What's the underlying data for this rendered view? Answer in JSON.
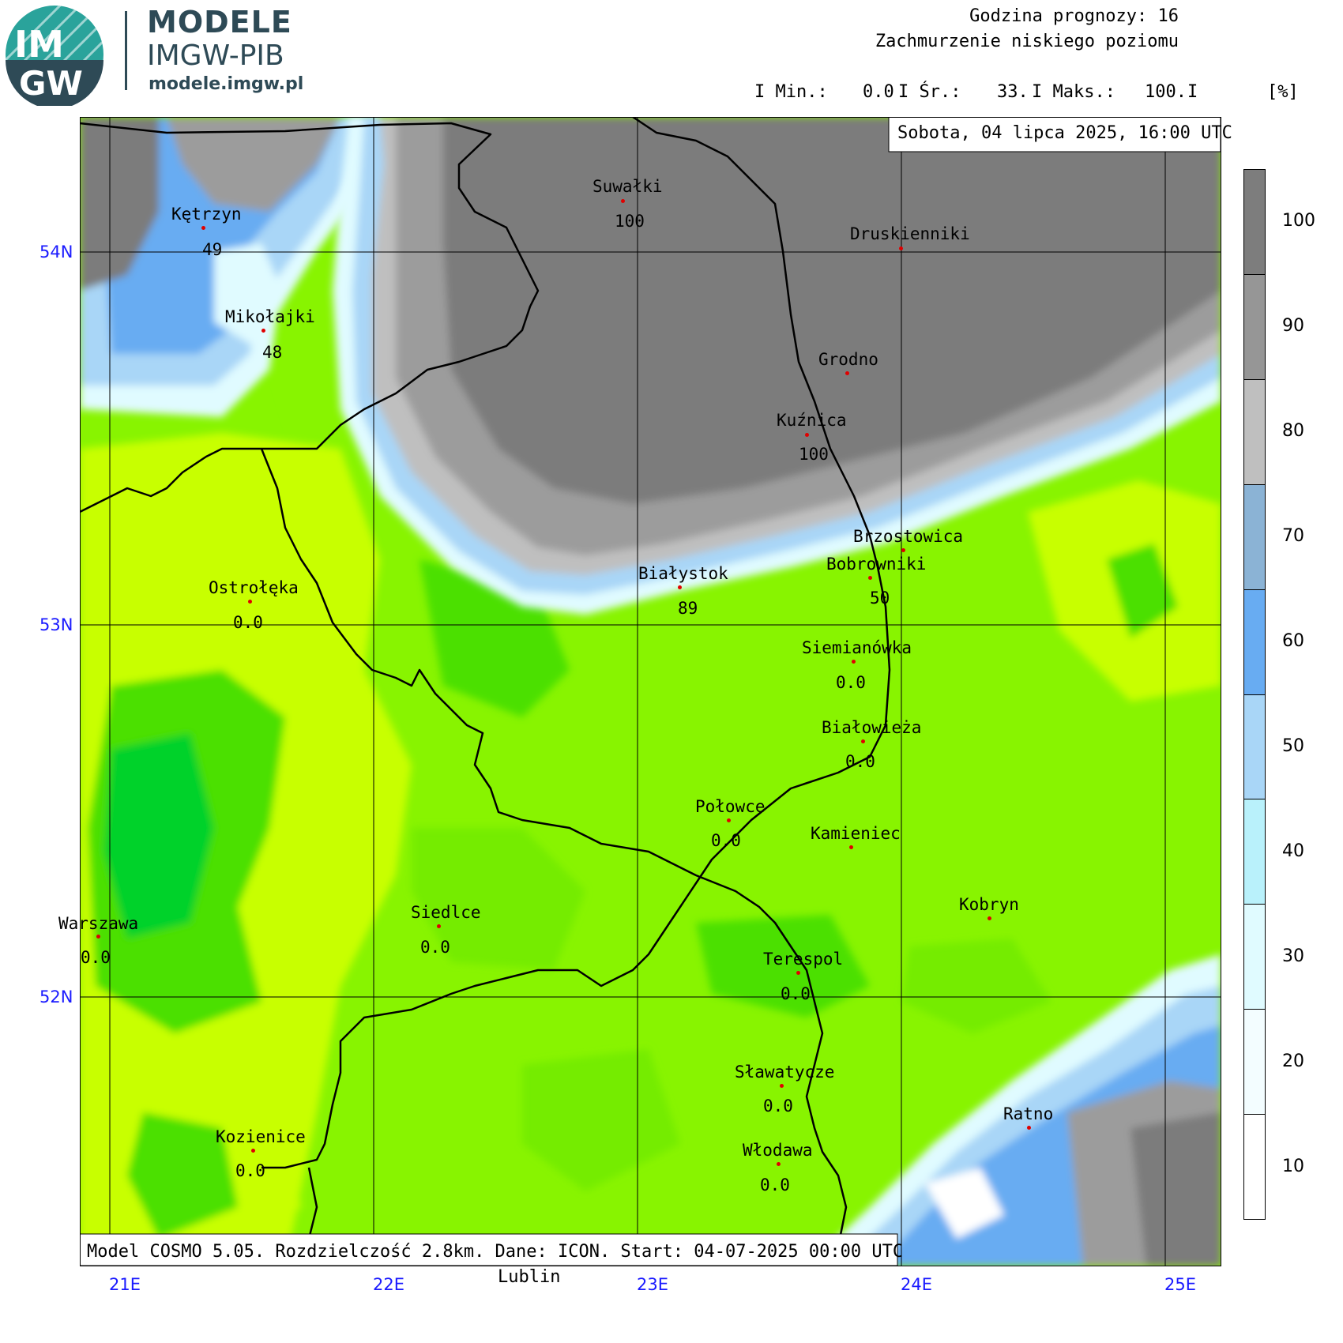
{
  "logo": {
    "badge_top": "IM",
    "badge_bottom": "GW",
    "title": "MODELE",
    "subtitle": "IMGW-PIB",
    "url": "modele.imgw.pl"
  },
  "header": {
    "forecast_hour": "Godzina prognozy: 16",
    "variable": "Zachmurzenie niskiego poziomu",
    "min_label": "I Min.:",
    "min_value": "0.0",
    "avg_label": "I Śr.:",
    "avg_value": "33.",
    "max_label": "I Maks.:",
    "max_value": "100.",
    "sep": "I",
    "unit": "[%]"
  },
  "date_box": "Sobota, 04 lipca 2025, 16:00 UTC",
  "model_box": "Model COSMO 5.05. Rozdzielczość 2.8km. Dane: ICON. Start: 04-07-2025 00:00 UTC",
  "extra_label": "Lublin",
  "lat_labels": [
    "54N",
    "53N",
    "52N"
  ],
  "lon_labels": [
    "21E",
    "22E",
    "23E",
    "24E",
    "25E"
  ],
  "colorbar": {
    "ticks": [
      "100",
      "90",
      "80",
      "70",
      "60",
      "50",
      "40",
      "30",
      "20",
      "10"
    ],
    "colors": [
      "#7d7d7d",
      "#969696",
      "#bfbfbf",
      "#8bb3d5",
      "#68acf2",
      "#a9d6f7",
      "#b9f1fb",
      "#e0fbff",
      "#f3fdff",
      "#ffffff"
    ]
  },
  "cities": [
    {
      "name": "Kętrzyn",
      "value": "49"
    },
    {
      "name": "Mikołajki",
      "value": "48"
    },
    {
      "name": "Suwałki",
      "value": "100"
    },
    {
      "name": "Druskienniki",
      "value": ""
    },
    {
      "name": "Grodno",
      "value": ""
    },
    {
      "name": "Kuźnica",
      "value": "100"
    },
    {
      "name": "Brzostowica",
      "value": ""
    },
    {
      "name": "Bobrowniki",
      "value": "50"
    },
    {
      "name": "Białystok",
      "value": "89"
    },
    {
      "name": "Ostrołęka",
      "value": "0.0"
    },
    {
      "name": "Siemianówka",
      "value": "0.0"
    },
    {
      "name": "Białowieża",
      "value": "0.0"
    },
    {
      "name": "Połowce",
      "value": "0.0"
    },
    {
      "name": "Kamieniec",
      "value": ""
    },
    {
      "name": "Kobryn",
      "value": ""
    },
    {
      "name": "Warszawa",
      "value": "0.0"
    },
    {
      "name": "Siedlce",
      "value": "0.0"
    },
    {
      "name": "Terespol",
      "value": "0.0"
    },
    {
      "name": "Sławatycze",
      "value": "0.0"
    },
    {
      "name": "Włodawa",
      "value": "0.0"
    },
    {
      "name": "Kozienice",
      "value": "0.0"
    },
    {
      "name": "Ratno",
      "value": ""
    }
  ],
  "map_colors": {
    "overcast": "#7c7c7c",
    "mostly_cloudy": "#9c9c9c",
    "light_blue": "#a9d6f7",
    "mid_blue": "#68acf2",
    "clear_light": "#c8ff00",
    "clear": "#88f400",
    "clear_dark": "#4ce000",
    "clear_darkest": "#00d22a"
  }
}
